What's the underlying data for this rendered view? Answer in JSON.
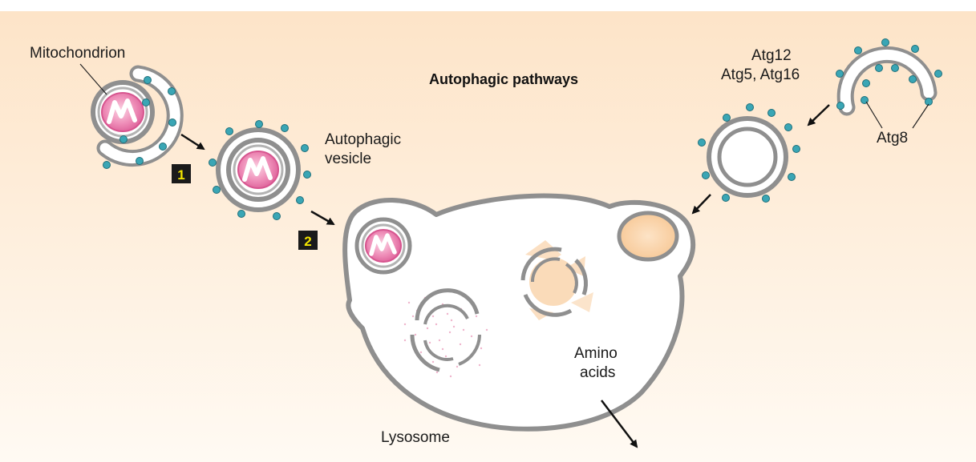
{
  "title": "Autophagic pathways",
  "labels": {
    "mitochondrion": "Mitochondrion",
    "autophagic_vesicle_line1": "Autophagic",
    "autophagic_vesicle_line2": "vesicle",
    "atg12": "Atg12",
    "atg5_atg16": "Atg5, Atg16",
    "atg8": "Atg8",
    "amino_acids_line1": "Amino",
    "amino_acids_line2": "acids",
    "lysosome": "Lysosome"
  },
  "steps": [
    "1",
    "2"
  ],
  "colors": {
    "background_top": "#fde6cc",
    "background_bottom": "#fffaf4",
    "membrane": "#8f8f8f",
    "mitochondrion": "#e06aa0",
    "protein_dot": "#3aa6b5",
    "step_box": "#1a1a1a",
    "step_text": "#f2e400",
    "cargo_peach": "#f9d2a8"
  }
}
